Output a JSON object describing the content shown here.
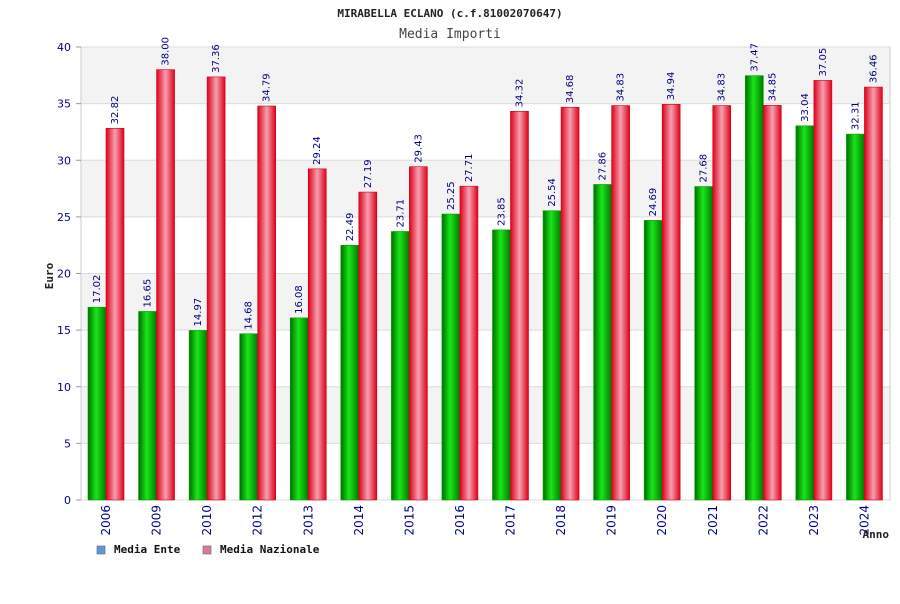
{
  "chart_data": {
    "type": "bar",
    "title": "MIRABELLA ECLANO (c.f.81002070647)",
    "subtitle": "Media Importi",
    "xlabel": "Anno",
    "ylabel": "Euro",
    "ylim": [
      0,
      40
    ],
    "yticks": [
      0,
      5,
      10,
      15,
      20,
      25,
      30,
      35,
      40
    ],
    "grid": true,
    "legend_position": "bottom-left",
    "categories": [
      "2006",
      "2009",
      "2010",
      "2012",
      "2013",
      "2014",
      "2015",
      "2016",
      "2017",
      "2018",
      "2019",
      "2020",
      "2021",
      "2022",
      "2023",
      "2024"
    ],
    "series": [
      {
        "name": "Media Ente",
        "color": "#00b000",
        "legend_color": "#5b9bd5",
        "values": [
          17.02,
          16.65,
          14.97,
          14.68,
          16.08,
          22.49,
          23.71,
          25.25,
          23.85,
          25.54,
          27.86,
          24.69,
          27.68,
          37.47,
          33.04,
          32.31
        ]
      },
      {
        "name": "Media Nazionale",
        "color": "#e8001c",
        "legend_color": "#d87aa0",
        "values": [
          32.82,
          38.0,
          37.36,
          34.79,
          29.24,
          27.19,
          29.43,
          27.71,
          34.32,
          34.68,
          34.83,
          34.94,
          34.83,
          34.85,
          37.05,
          36.46
        ]
      }
    ]
  }
}
